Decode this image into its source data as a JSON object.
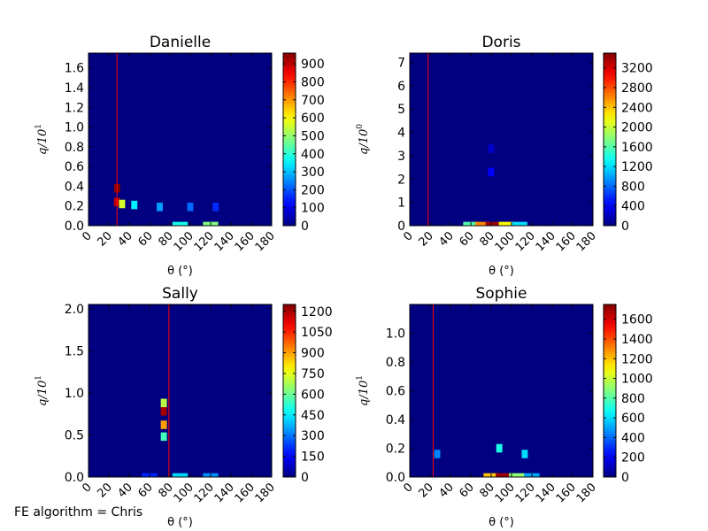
{
  "footer_text": "FE algorithm = Chris",
  "chart_data": [
    {
      "type": "heatmap",
      "title": "Danielle",
      "xlabel": "θ (°)",
      "ylabel": "q/10^1",
      "ylabel_base": "q/10",
      "ylabel_exp": "1",
      "xlim": [
        0,
        180
      ],
      "ylim": [
        0,
        1.75
      ],
      "xticks": [
        0,
        20,
        40,
        60,
        80,
        100,
        120,
        140,
        160,
        180
      ],
      "yticks": [
        "0.0",
        "0.2",
        "0.4",
        "0.6",
        "0.8",
        "1.0",
        "1.2",
        "1.4",
        "1.6"
      ],
      "ytick_values": [
        0,
        0.2,
        0.4,
        0.6,
        0.8,
        1.0,
        1.2,
        1.4,
        1.6
      ],
      "colorbar_ticks": [
        0,
        100,
        200,
        300,
        400,
        500,
        600,
        700,
        800,
        900
      ],
      "colorbar_max": 960,
      "vline_x": 28,
      "hotspots": [
        {
          "x": 28,
          "y": 0.38,
          "value": 950
        },
        {
          "x": 28,
          "y": 0.24,
          "value": 900
        },
        {
          "x": 33,
          "y": 0.22,
          "value": 560
        },
        {
          "x": 45,
          "y": 0.21,
          "value": 350
        },
        {
          "x": 70,
          "y": 0.19,
          "value": 270
        },
        {
          "x": 100,
          "y": 0.19,
          "value": 220
        },
        {
          "x": 125,
          "y": 0.19,
          "value": 160
        },
        {
          "x": 90,
          "y": 0.0,
          "value": 380
        },
        {
          "x": 120,
          "y": 0.0,
          "value": 480
        }
      ]
    },
    {
      "type": "heatmap",
      "title": "Doris",
      "xlabel": "θ (°)",
      "ylabel": "q/10^0",
      "ylabel_base": "q/10",
      "ylabel_exp": "0",
      "xlim": [
        0,
        180
      ],
      "ylim": [
        0,
        7.4
      ],
      "xticks": [
        0,
        20,
        40,
        60,
        80,
        100,
        120,
        140,
        160,
        180
      ],
      "yticks": [
        "0",
        "1",
        "2",
        "3",
        "4",
        "5",
        "6",
        "7"
      ],
      "ytick_values": [
        0,
        1,
        2,
        3,
        4,
        5,
        6,
        7
      ],
      "colorbar_ticks": [
        0,
        400,
        800,
        1200,
        1600,
        2000,
        2400,
        2800,
        3200
      ],
      "colorbar_max": 3500,
      "vline_x": 18,
      "hotspots": [
        {
          "x": 80,
          "y": 2.3,
          "value": 420
        },
        {
          "x": 80,
          "y": 3.3,
          "value": 260
        },
        {
          "x": 60,
          "y": 0.0,
          "value": 1600
        },
        {
          "x": 72,
          "y": 0.0,
          "value": 2600
        },
        {
          "x": 82,
          "y": 0.0,
          "value": 3400
        },
        {
          "x": 95,
          "y": 0.0,
          "value": 2200
        },
        {
          "x": 108,
          "y": 0.0,
          "value": 1200
        }
      ]
    },
    {
      "type": "heatmap",
      "title": "Sally",
      "xlabel": "θ (°)",
      "ylabel": "q/10^1",
      "ylabel_base": "q/10",
      "ylabel_exp": "1",
      "xlim": [
        0,
        180
      ],
      "ylim": [
        0,
        2.05
      ],
      "xticks": [
        0,
        20,
        40,
        60,
        80,
        100,
        120,
        140,
        160,
        180
      ],
      "yticks": [
        "0.0",
        "0.5",
        "1.0",
        "1.5",
        "2.0"
      ],
      "ytick_values": [
        0,
        0.5,
        1.0,
        1.5,
        2.0
      ],
      "colorbar_ticks": [
        0,
        150,
        300,
        450,
        600,
        750,
        900,
        1050,
        1200
      ],
      "colorbar_max": 1250,
      "vline_x": 79,
      "hotspots": [
        {
          "x": 74,
          "y": 0.78,
          "value": 1200
        },
        {
          "x": 74,
          "y": 0.62,
          "value": 900
        },
        {
          "x": 74,
          "y": 0.48,
          "value": 550
        },
        {
          "x": 74,
          "y": 0.88,
          "value": 700
        },
        {
          "x": 90,
          "y": 0.0,
          "value": 420
        },
        {
          "x": 120,
          "y": 0.0,
          "value": 330
        },
        {
          "x": 60,
          "y": 0.0,
          "value": 200
        }
      ]
    },
    {
      "type": "heatmap",
      "title": "Sophie",
      "xlabel": "θ (°)",
      "ylabel": "q/10^1",
      "ylabel_base": "q/10",
      "ylabel_exp": "1",
      "xlim": [
        0,
        180
      ],
      "ylim": [
        0,
        1.2
      ],
      "xticks": [
        0,
        20,
        40,
        60,
        80,
        100,
        120,
        140,
        160,
        180
      ],
      "yticks": [
        "0.0",
        "0.2",
        "0.4",
        "0.6",
        "0.8",
        "1.0"
      ],
      "ytick_values": [
        0,
        0.2,
        0.4,
        0.6,
        0.8,
        1.0
      ],
      "colorbar_ticks": [
        0,
        200,
        400,
        600,
        800,
        1000,
        1200,
        1400,
        1600
      ],
      "colorbar_max": 1750,
      "vline_x": 23,
      "hotspots": [
        {
          "x": 27,
          "y": 0.16,
          "value": 450
        },
        {
          "x": 88,
          "y": 0.2,
          "value": 700
        },
        {
          "x": 113,
          "y": 0.16,
          "value": 600
        },
        {
          "x": 80,
          "y": 0.0,
          "value": 1200
        },
        {
          "x": 92,
          "y": 0.0,
          "value": 1700
        },
        {
          "x": 105,
          "y": 0.0,
          "value": 900
        },
        {
          "x": 120,
          "y": 0.0,
          "value": 500
        }
      ]
    }
  ]
}
